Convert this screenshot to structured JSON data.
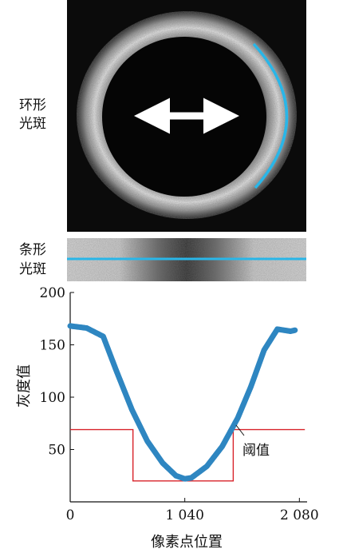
{
  "labels": {
    "ring": [
      "环形",
      "光斑"
    ],
    "strip": [
      "条形",
      "光斑"
    ],
    "threshold": "阈值"
  },
  "colors": {
    "curve": "#2e86c1",
    "threshold": "#d8232a",
    "overlay": "#29b6e8",
    "arrow": "#ffffff",
    "image_bg": "#0b0b0b"
  },
  "chart_data": {
    "type": "line",
    "xlabel": "像素点位置",
    "ylabel": "灰度值",
    "xlim": [
      0,
      2150
    ],
    "ylim": [
      0,
      200
    ],
    "xticks": [
      {
        "value": 0,
        "label": "0"
      },
      {
        "value": 1040,
        "label": "1 040"
      },
      {
        "value": 2080,
        "label": "2 080"
      }
    ],
    "yticks": [
      {
        "value": 50,
        "label": "50"
      },
      {
        "value": 100,
        "label": "100"
      },
      {
        "value": 150,
        "label": "150"
      },
      {
        "value": 200,
        "label": "200"
      }
    ],
    "series": [
      {
        "x": [
          0,
          150,
          300,
          420,
          560,
          700,
          840,
          960,
          1040,
          1100,
          1240,
          1380,
          1520,
          1640,
          1760,
          1880,
          2000,
          2040
        ],
        "y": [
          168,
          166,
          158,
          125,
          88,
          58,
          37,
          25,
          22,
          23,
          34,
          53,
          80,
          110,
          145,
          165,
          163,
          164
        ]
      }
    ],
    "threshold_x": [
      0,
      570,
      570,
      1480,
      1480,
      2130
    ],
    "threshold_y": [
      69,
      69,
      20,
      20,
      69,
      69
    ]
  }
}
